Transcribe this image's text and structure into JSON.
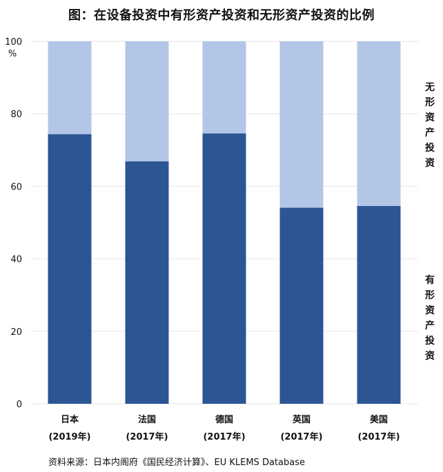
{
  "title": "图：在设备投资中有形资产投资和无形资产投资的比例",
  "source": "资料来源：日本内阁府《国民经济计算》、EU  KLEMS Database",
  "colors": {
    "tangible": "#2c5594",
    "intangible": "#b4c6e7",
    "grid": "#e6e6e6"
  },
  "chart_data": {
    "type": "bar",
    "stacked": true,
    "percent_stacked": true,
    "categories": [
      {
        "name": "日本",
        "year": "(2019年)"
      },
      {
        "name": "法国",
        "year": "(2017年)"
      },
      {
        "name": "德国",
        "year": "(2017年)"
      },
      {
        "name": "英国",
        "year": "(2017年)"
      },
      {
        "name": "美国",
        "year": "(2017年)"
      }
    ],
    "series": [
      {
        "name": "有形资产投资",
        "values": [
          74.4,
          66.9,
          74.6,
          54.1,
          54.6
        ]
      },
      {
        "name": "无形资产投资",
        "values": [
          25.6,
          33.1,
          25.4,
          45.9,
          45.4
        ]
      }
    ],
    "y_unit": "%",
    "ylim": [
      0,
      100
    ],
    "yticks": [
      0,
      20,
      40,
      60,
      80,
      100
    ],
    "grid": true,
    "legend": "right side, vertical text"
  }
}
